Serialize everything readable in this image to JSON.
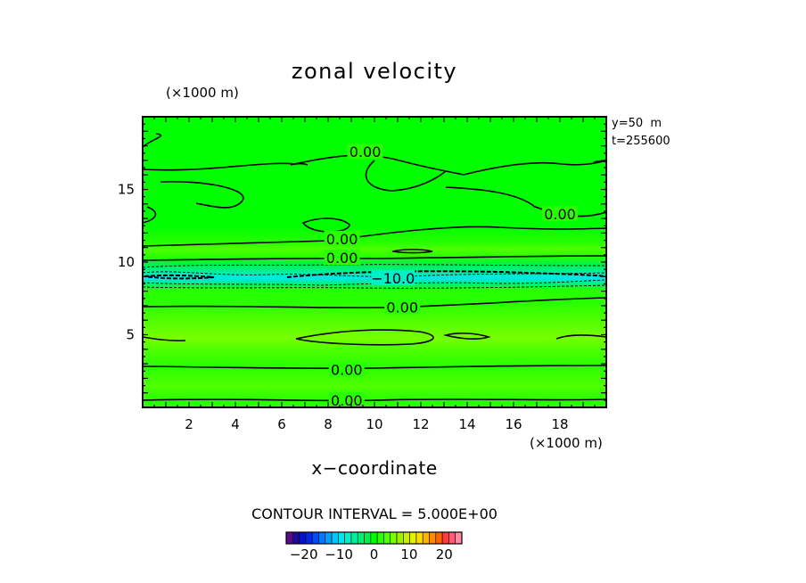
{
  "chart_data": {
    "type": "heatmap",
    "title": "zonal velocity",
    "xlabel": "x−coordinate",
    "x_unit_label": "(×1000 m)",
    "y_unit_label": "(×1000 m)",
    "xlim": [
      0,
      20
    ],
    "ylim": [
      0,
      20
    ],
    "x_ticks": [
      2,
      4,
      6,
      8,
      10,
      12,
      14,
      16,
      18
    ],
    "y_ticks": [
      5,
      10,
      15
    ],
    "annotations": [
      "y=50  m",
      "t=255600"
    ],
    "contour_interval_label": "CONTOUR INTERVAL = 5.000E+00",
    "contour_interval": 5,
    "contour_labels": [
      {
        "text": "0.00",
        "x": 9.6,
        "y": 17.6
      },
      {
        "text": "0.00",
        "x": 18.0,
        "y": 13.3
      },
      {
        "text": "0.00",
        "x": 8.6,
        "y": 11.6
      },
      {
        "text": "0.00",
        "x": 8.6,
        "y": 10.3
      },
      {
        "text": "−10.0",
        "x": 10.8,
        "y": 8.9
      },
      {
        "text": "0.00",
        "x": 11.2,
        "y": 6.9
      },
      {
        "text": "0.00",
        "x": 8.8,
        "y": 2.6
      },
      {
        "text": "0.00",
        "x": 8.8,
        "y": 0.5
      }
    ],
    "field_profile_y": [
      {
        "y": 0.0,
        "u": 1.5
      },
      {
        "y": 0.5,
        "u": 1.5
      },
      {
        "y": 1.5,
        "u": 3.0
      },
      {
        "y": 2.8,
        "u": 1.5
      },
      {
        "y": 4.0,
        "u": 4.0
      },
      {
        "y": 4.8,
        "u": 5.0
      },
      {
        "y": 6.0,
        "u": 4.0
      },
      {
        "y": 7.2,
        "u": 2.0
      },
      {
        "y": 8.1,
        "u": 1.0
      },
      {
        "y": 8.5,
        "u": -3.0
      },
      {
        "y": 8.9,
        "u": -9.0
      },
      {
        "y": 9.3,
        "u": -6.0
      },
      {
        "y": 9.8,
        "u": -1.0
      },
      {
        "y": 10.4,
        "u": 1.5
      },
      {
        "y": 10.9,
        "u": 3.5
      },
      {
        "y": 11.3,
        "u": 1.5
      },
      {
        "y": 12.5,
        "u": 0.5
      },
      {
        "y": 15.0,
        "u": 0.5
      },
      {
        "y": 17.5,
        "u": 0.5
      },
      {
        "y": 20.0,
        "u": 0.5
      }
    ],
    "colorbar": {
      "ticks": [
        -20,
        -10,
        0,
        10,
        20
      ],
      "tick_labels": [
        "−20",
        "−10",
        "0",
        "10",
        "20"
      ],
      "range": [
        -25,
        25
      ],
      "colors": [
        "#5a0a8c",
        "#1e0aa0",
        "#0014c8",
        "#0028e6",
        "#004cff",
        "#0078ff",
        "#00a0ff",
        "#00c8ff",
        "#00e6f0",
        "#00f0c8",
        "#00f0a0",
        "#00f078",
        "#00f050",
        "#00ff00",
        "#28ff00",
        "#50ff00",
        "#78ff00",
        "#a0f000",
        "#c8f000",
        "#e6f000",
        "#ffdc00",
        "#ffb400",
        "#ff8c00",
        "#ff6400",
        "#ff3c3c",
        "#ff5a78",
        "#ff8ca0"
      ]
    }
  }
}
